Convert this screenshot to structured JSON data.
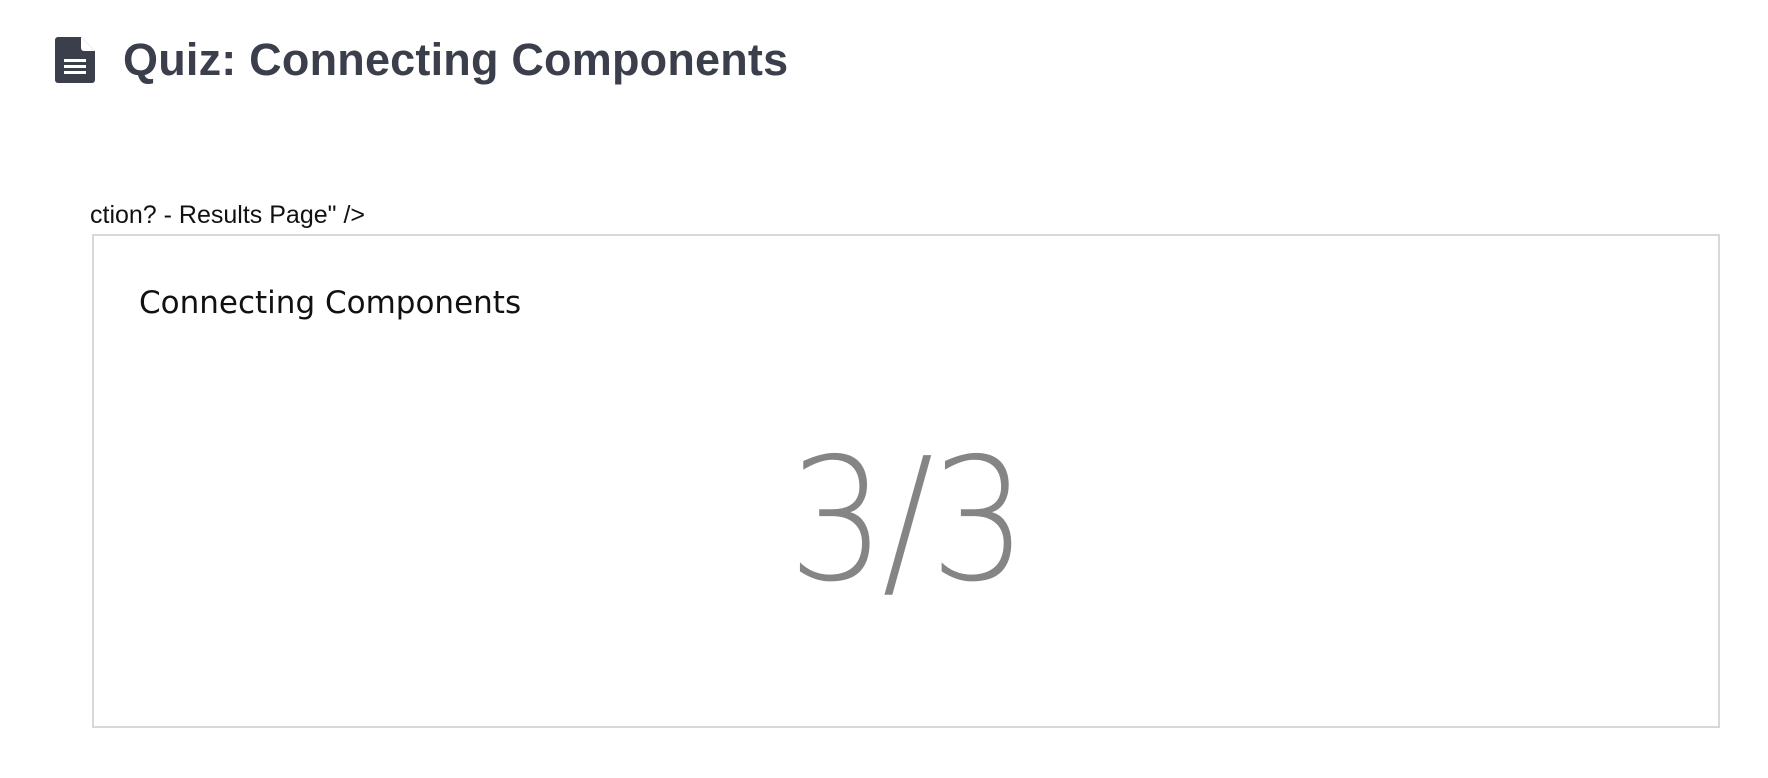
{
  "header": {
    "icon": "document-icon",
    "title": "Quiz: Connecting Components"
  },
  "stray_text": "ction? - Results Page\" />",
  "quiz": {
    "name": "Connecting Components",
    "score": "3/3"
  },
  "colors": {
    "title": "#3a3f4b",
    "score": "#858585",
    "frame_border": "#d8d8d8"
  }
}
